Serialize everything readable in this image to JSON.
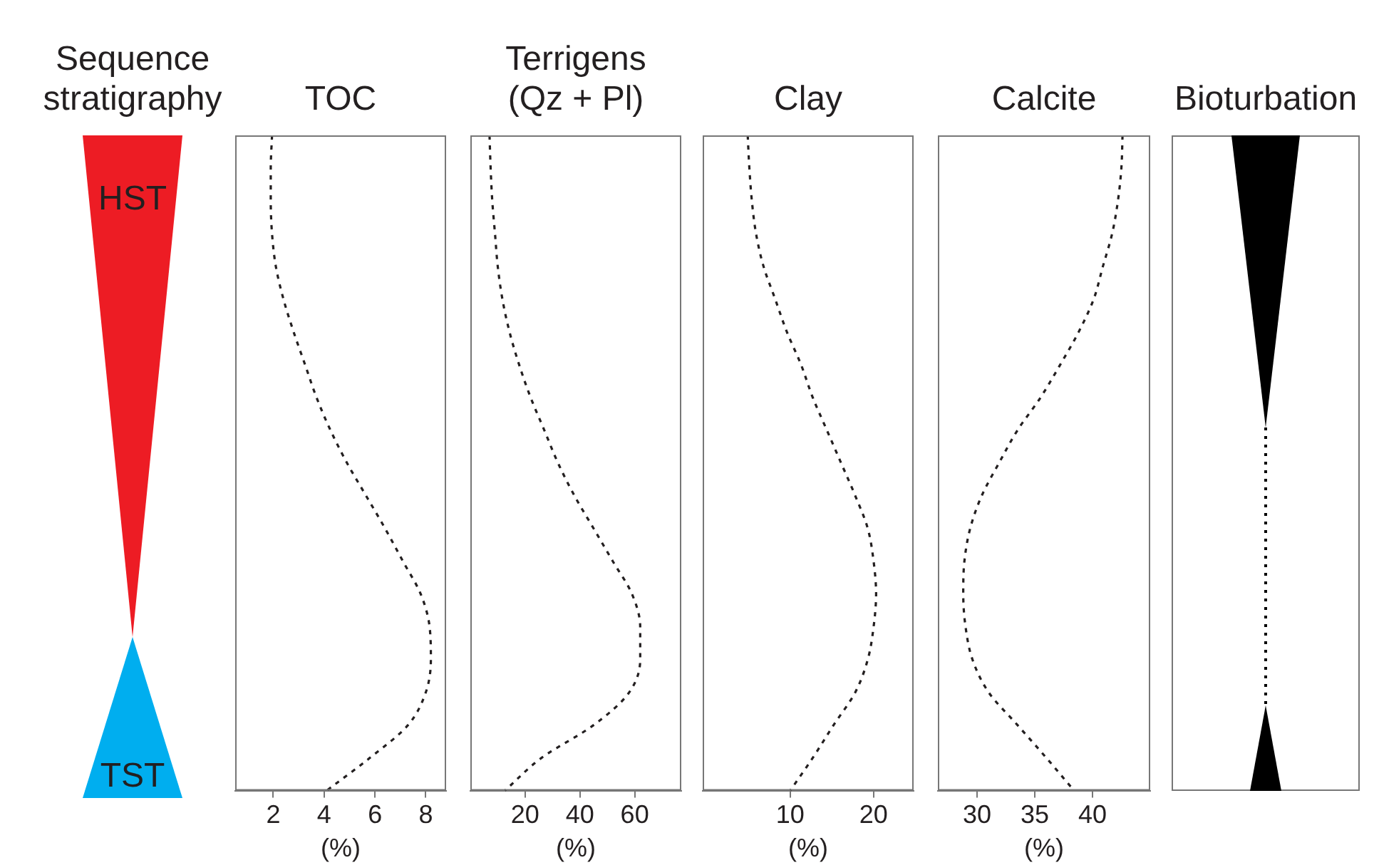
{
  "chart_data": [
    {
      "type": "other",
      "title": "Sequence stratigraphy",
      "annotations": [
        "HST",
        "TST"
      ]
    },
    {
      "type": "line",
      "title": "TOC",
      "xlabel": "(%)",
      "orientation": "horizontal",
      "tick_labels": "x",
      "marker": "none",
      "line_style": "dotted",
      "xlim": [
        0.5,
        8.8
      ],
      "xticks": [
        2,
        4,
        6,
        8
      ],
      "categories": [
        null,
        null,
        null,
        null,
        null,
        null,
        null,
        null,
        null,
        null,
        null,
        null,
        null,
        null,
        null,
        null,
        null,
        null,
        null,
        null,
        null
      ],
      "series": [
        {
          "color": "#231f20",
          "values": [
            1.95,
            1.9,
            1.9,
            1.95,
            2.1,
            2.4,
            2.8,
            3.25,
            3.7,
            4.25,
            4.9,
            5.65,
            6.4,
            7.1,
            7.8,
            8.15,
            8.2,
            8.0,
            7.3,
            5.8,
            4.1
          ]
        }
      ]
    },
    {
      "type": "line",
      "title": "Terrigens (Qz + Pl)",
      "xlabel": "(%)",
      "orientation": "horizontal",
      "tick_labels": "x",
      "marker": "none",
      "line_style": "dotted",
      "xlim": [
        0,
        77
      ],
      "xticks": [
        20,
        40,
        60
      ],
      "categories": [
        null,
        null,
        null,
        null,
        null,
        null,
        null,
        null,
        null,
        null,
        null,
        null,
        null,
        null,
        null,
        null,
        null,
        null,
        null,
        null,
        null
      ],
      "series": [
        {
          "color": "#231f20",
          "values": [
            7,
            7.4,
            8,
            9,
            10,
            11.7,
            14.3,
            17.8,
            22,
            27,
            32,
            38,
            45,
            52,
            59,
            62,
            62,
            58,
            45,
            26,
            12.6
          ]
        }
      ]
    },
    {
      "type": "line",
      "title": "Clay",
      "xlabel": "(%)",
      "orientation": "horizontal",
      "tick_labels": "x",
      "marker": "none",
      "line_style": "dotted",
      "xlim": [
        -0.5,
        24.8
      ],
      "xticks": [
        10,
        20
      ],
      "categories": [
        null,
        null,
        null,
        null,
        null,
        null,
        null,
        null,
        null,
        null,
        null,
        null,
        null,
        null,
        null,
        null,
        null,
        null,
        null,
        null,
        null
      ],
      "series": [
        {
          "color": "#231f20",
          "values": [
            4.9,
            5.1,
            5.4,
            5.9,
            6.8,
            8.2,
            9.6,
            11.3,
            12.7,
            14.4,
            16.1,
            17.8,
            19.3,
            20,
            20.3,
            20,
            19.3,
            17.8,
            15.2,
            12.7,
            10
          ]
        }
      ]
    },
    {
      "type": "line",
      "title": "Calcite",
      "xlabel": "(%)",
      "orientation": "horizontal",
      "tick_labels": "x",
      "marker": "none",
      "line_style": "dotted",
      "xlim": [
        26.6,
        45
      ],
      "xticks": [
        30,
        35,
        40
      ],
      "categories": [
        null,
        null,
        null,
        null,
        null,
        null,
        null,
        null,
        null,
        null,
        null,
        null,
        null,
        null,
        null,
        null,
        null,
        null,
        null,
        null,
        null
      ],
      "series": [
        {
          "color": "#231f20",
          "values": [
            42.6,
            42.5,
            42.2,
            41.7,
            40.9,
            40.1,
            38.8,
            37.2,
            35.5,
            33.5,
            31.9,
            30.4,
            29.4,
            28.9,
            28.8,
            29,
            29.6,
            31,
            33.5,
            36,
            38.4
          ]
        }
      ]
    },
    {
      "type": "other",
      "title": "Bioturbation"
    }
  ]
}
